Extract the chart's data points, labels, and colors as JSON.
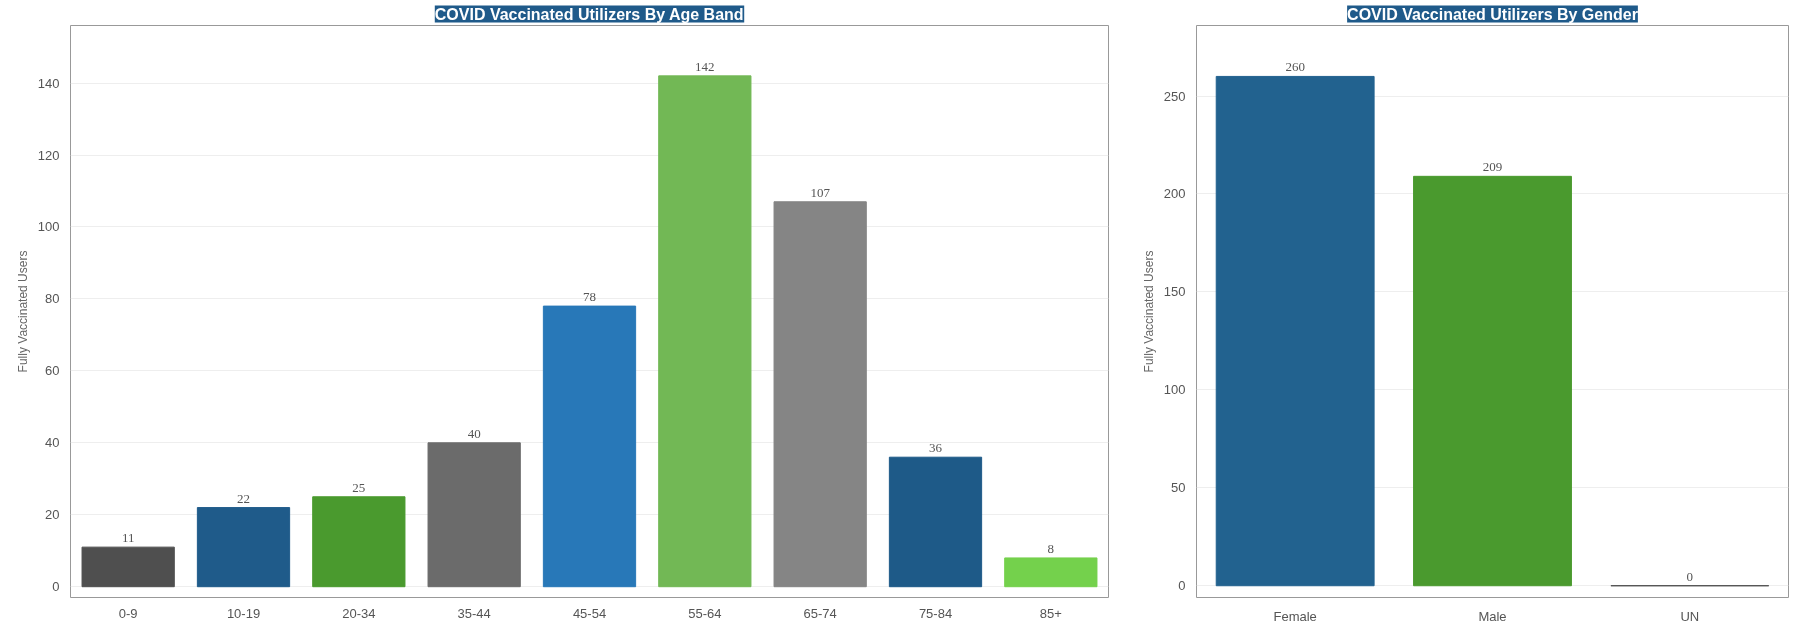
{
  "chart_data": [
    {
      "type": "bar",
      "title": "COVID Vaccinated Utilizers By Age Band",
      "ylabel": "Fully Vaccinated Users",
      "categories": [
        "0-9",
        "10-19",
        "20-34",
        "35-44",
        "45-54",
        "55-64",
        "65-74",
        "75-84",
        "85+"
      ],
      "values": [
        11,
        22,
        25,
        40,
        78,
        142,
        107,
        36,
        8
      ],
      "colors": [
        "#4f4f4f",
        "#1f5b8a",
        "#4a9a2e",
        "#6b6b6b",
        "#2878b8",
        "#72b855",
        "#858585",
        "#1e5a88",
        "#74d14c"
      ],
      "ylim": [
        -3,
        156
      ],
      "yticks": [
        0,
        20,
        40,
        60,
        80,
        100,
        120,
        140
      ],
      "grid": "y",
      "data_labels": true
    },
    {
      "type": "bar",
      "title": "COVID Vaccinated Utilizers By Gender",
      "ylabel": "Fully Vaccinated Users",
      "categories": [
        "Female",
        "Male",
        "UN"
      ],
      "values": [
        260,
        209,
        0
      ],
      "colors": [
        "#22628f",
        "#4a9a2e",
        "#4f4f4f"
      ],
      "ylim": [
        -6,
        286
      ],
      "yticks": [
        0,
        50,
        100,
        150,
        200,
        250
      ],
      "grid": "y",
      "data_labels": true
    }
  ]
}
